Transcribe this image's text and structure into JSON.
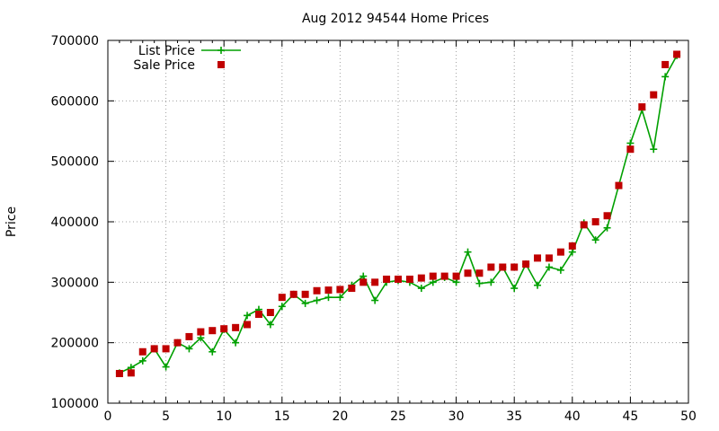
{
  "chart_data": {
    "type": "line",
    "title": "Aug 2012 94544 Home Prices",
    "xlabel": "",
    "ylabel": "Price",
    "xlim": [
      0,
      50
    ],
    "ylim": [
      100000,
      700000
    ],
    "x_ticks": [
      "0",
      "5",
      "10",
      "15",
      "20",
      "25",
      "30",
      "35",
      "40",
      "45",
      "50"
    ],
    "y_ticks": [
      "100000",
      "200000",
      "300000",
      "400000",
      "500000",
      "600000",
      "700000"
    ],
    "grid": true,
    "legend_position": "top-left",
    "x": [
      1,
      2,
      3,
      4,
      5,
      6,
      7,
      8,
      9,
      10,
      11,
      12,
      13,
      14,
      15,
      16,
      17,
      18,
      19,
      20,
      21,
      22,
      23,
      24,
      25,
      26,
      27,
      28,
      29,
      30,
      31,
      32,
      33,
      34,
      35,
      36,
      37,
      38,
      39,
      40,
      41,
      42,
      43,
      44,
      45,
      46,
      47,
      48,
      49
    ],
    "series": [
      {
        "name": "List Price",
        "style": "lines+points",
        "color": "#00a000",
        "marker": "plus",
        "values": [
          150000,
          159000,
          170000,
          190000,
          160000,
          200000,
          190000,
          208000,
          185000,
          222000,
          200000,
          245000,
          255000,
          230000,
          260000,
          280000,
          265000,
          270000,
          275000,
          275000,
          295000,
          310000,
          270000,
          300000,
          303000,
          300000,
          290000,
          300000,
          308000,
          300000,
          350000,
          298000,
          300000,
          325000,
          290000,
          330000,
          295000,
          325000,
          320000,
          350000,
          398000,
          370000,
          390000,
          460000,
          530000,
          585000,
          520000,
          640000,
          675000
        ]
      },
      {
        "name": "Sale Price",
        "style": "points",
        "color": "#c00000",
        "marker": "square",
        "values": [
          149000,
          150000,
          185000,
          190000,
          190000,
          200000,
          210000,
          218000,
          220000,
          223000,
          225000,
          230000,
          247000,
          250000,
          275000,
          280000,
          280000,
          286000,
          287000,
          288000,
          290000,
          300000,
          300000,
          305000,
          305000,
          305000,
          307000,
          310000,
          310000,
          310000,
          315000,
          315000,
          325000,
          325000,
          325000,
          330000,
          340000,
          340000,
          350000,
          360000,
          395000,
          400000,
          410000,
          460000,
          520000,
          590000,
          610000,
          660000,
          677000
        ]
      }
    ]
  }
}
